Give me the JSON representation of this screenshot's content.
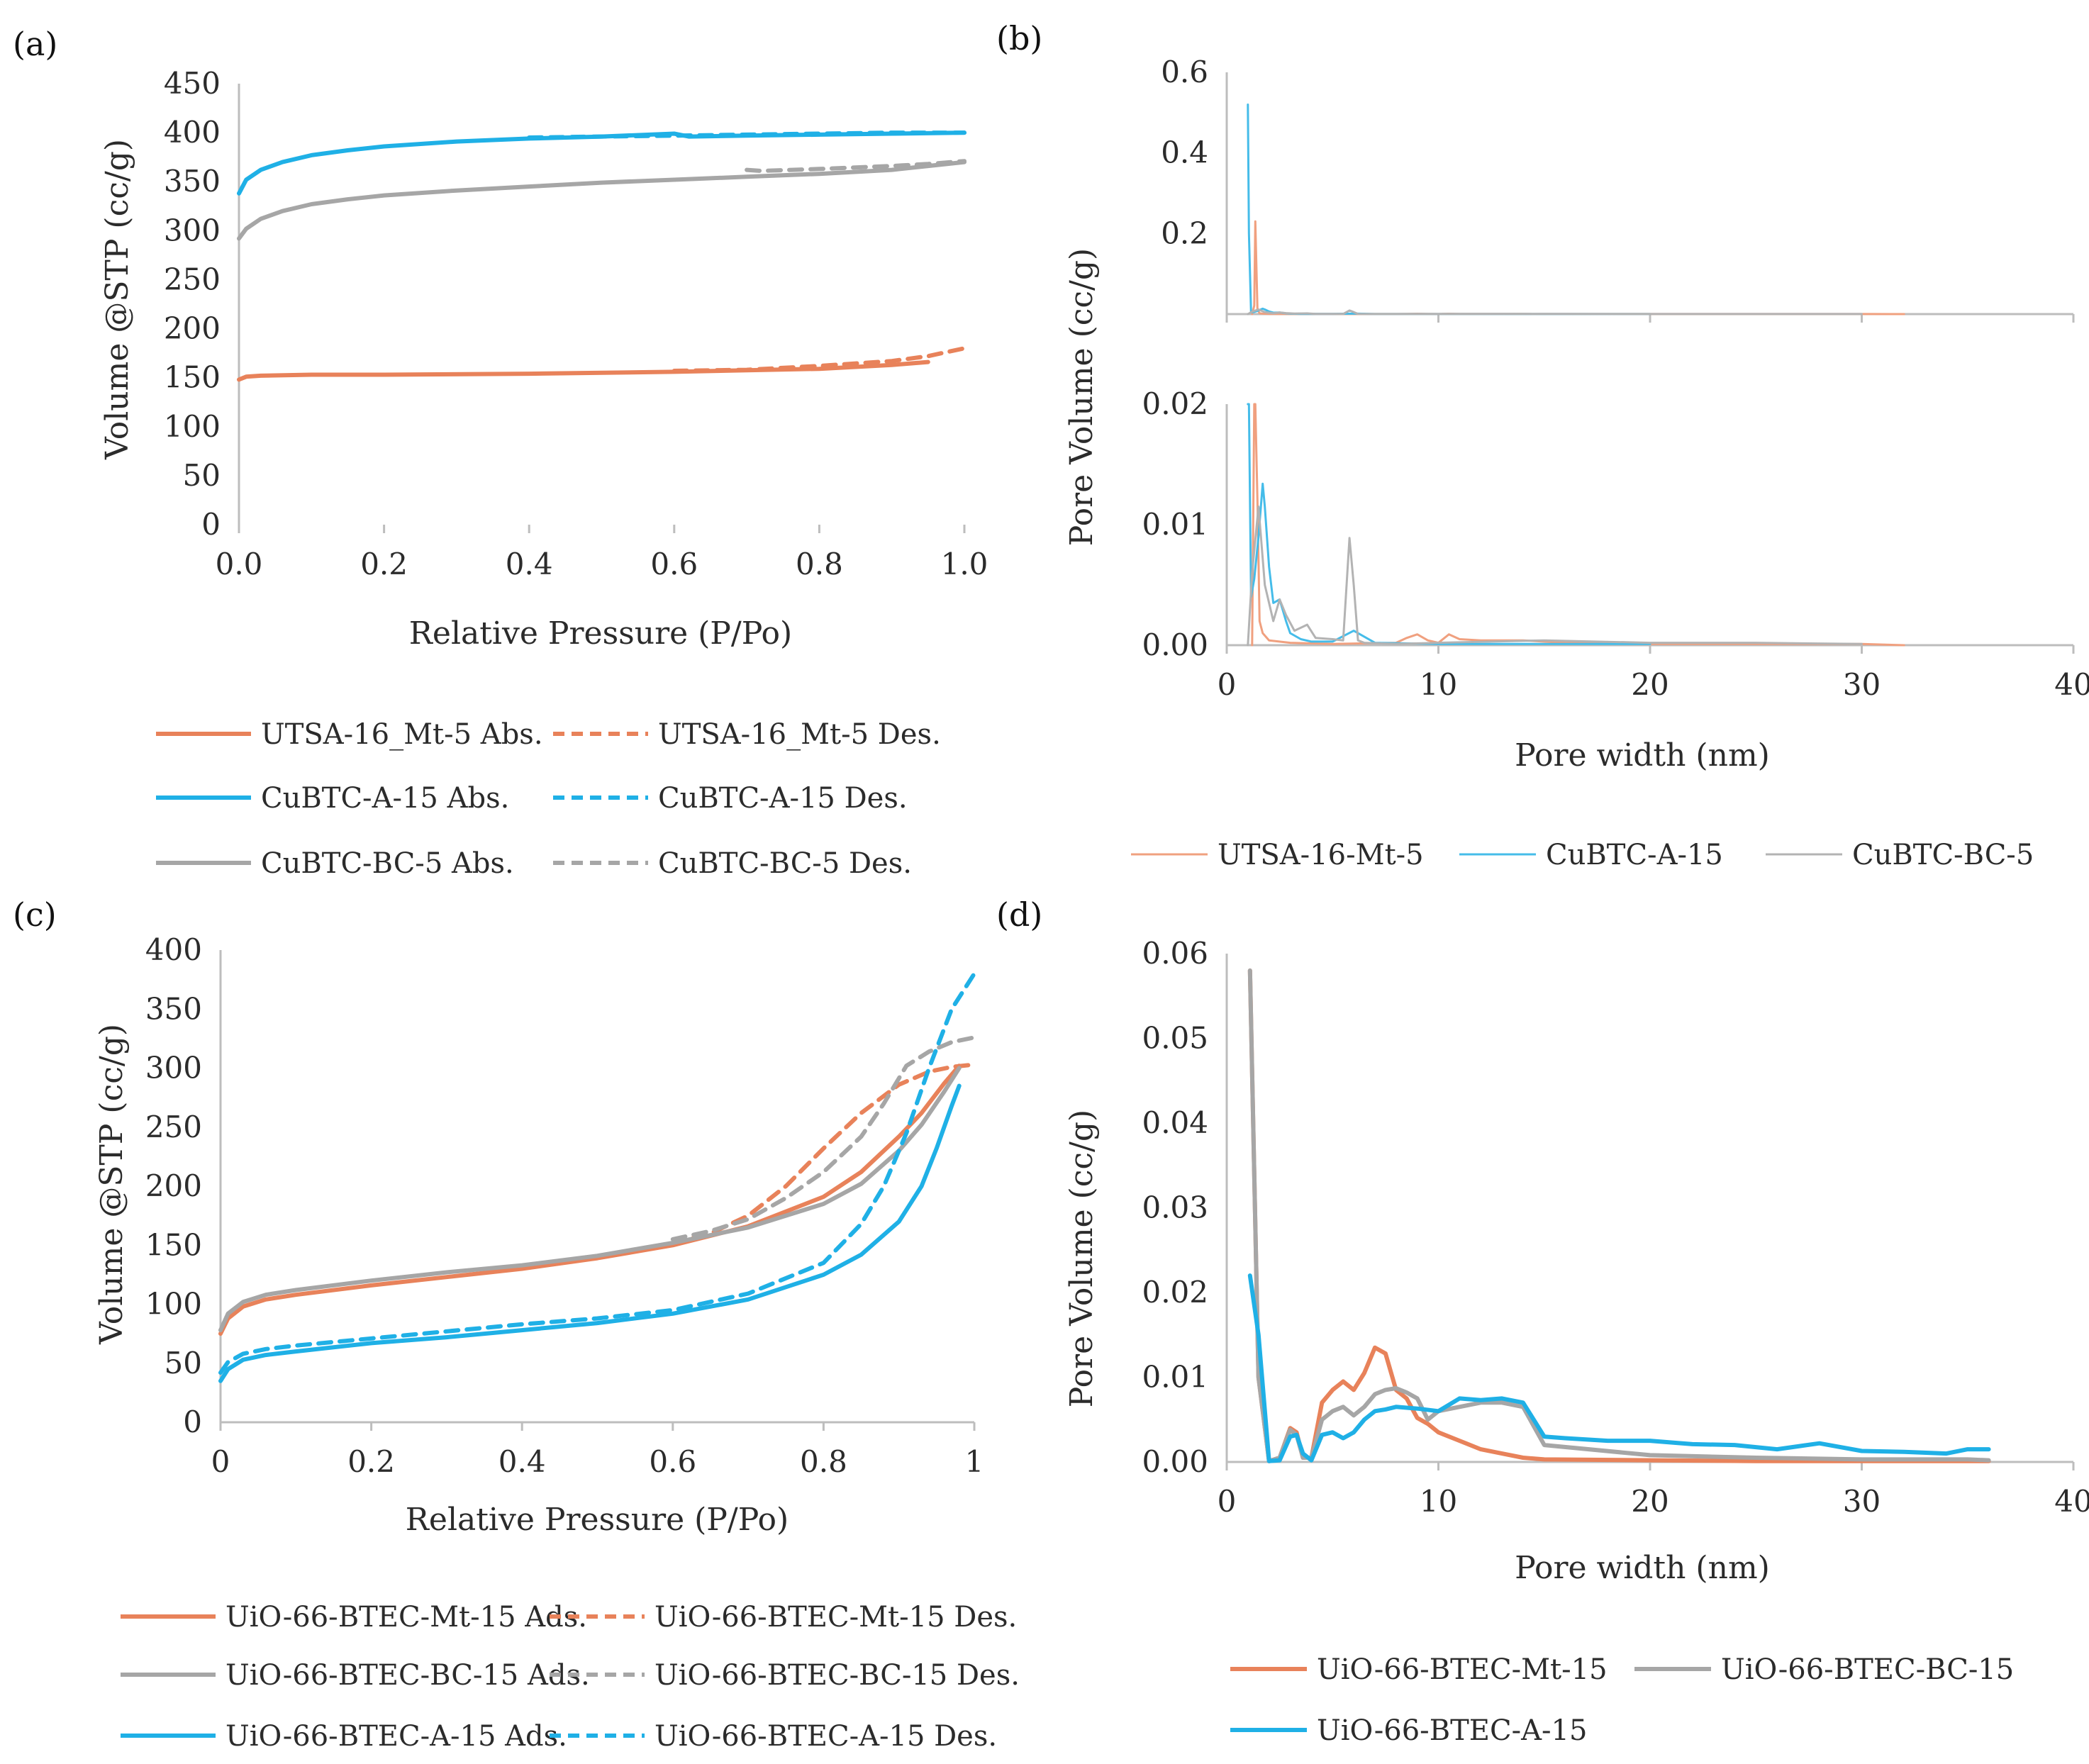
{
  "chart_data": [
    {
      "panel_label": "(a)",
      "type": "line",
      "xlabel": "Relative Pressure (P/Po)",
      "ylabel": "Volume @STP (cc/g)",
      "xlim": [
        0,
        1
      ],
      "ylim": [
        0,
        450
      ],
      "xticks": [
        0,
        0.2,
        0.4,
        0.6,
        0.8,
        1.0
      ],
      "xtick_labels": [
        "0.0",
        "0.2",
        "0.4",
        "0.6",
        "0.8",
        "1.0"
      ],
      "yticks": [
        0,
        50,
        100,
        150,
        200,
        250,
        300,
        350,
        400,
        450
      ],
      "ytick_labels": [
        "0",
        "50",
        "100",
        "150",
        "200",
        "250",
        "300",
        "350",
        "400",
        "450"
      ],
      "legend_position": "bottom",
      "series": [
        {
          "name": "UTSA-16_Mt-5 Abs.",
          "color": "#e8825a",
          "dash": "solid",
          "x": [
            0.0,
            0.01,
            0.03,
            0.1,
            0.2,
            0.4,
            0.6,
            0.8,
            0.9,
            0.95
          ],
          "y": [
            148,
            151,
            152,
            153,
            153,
            154,
            156,
            159,
            163,
            166
          ]
        },
        {
          "name": "UTSA-16_Mt-5 Des.",
          "color": "#e8825a",
          "dash": "dashed",
          "x": [
            0.6,
            0.7,
            0.8,
            0.9,
            0.95,
            1.0
          ],
          "y": [
            157,
            158,
            162,
            167,
            172,
            180
          ]
        },
        {
          "name": "CuBTC-A-15 Abs.",
          "color": "#1fb0e6",
          "dash": "solid",
          "x": [
            0.0,
            0.01,
            0.03,
            0.06,
            0.1,
            0.15,
            0.2,
            0.3,
            0.4,
            0.5,
            0.6,
            0.62,
            0.7,
            0.8,
            0.9,
            1.0
          ],
          "y": [
            338,
            352,
            362,
            370,
            377,
            382,
            386,
            391,
            394,
            396,
            399,
            396,
            397,
            398,
            399,
            400
          ]
        },
        {
          "name": "CuBTC-A-15 Des.",
          "color": "#1fb0e6",
          "dash": "dashed",
          "x": [
            0.4,
            0.5,
            0.6,
            0.7,
            0.8,
            0.9,
            1.0
          ],
          "y": [
            395,
            396,
            397,
            398,
            399,
            400,
            400
          ]
        },
        {
          "name": "CuBTC-BC-5 Abs.",
          "color": "#a6a6a6",
          "dash": "solid",
          "x": [
            0.0,
            0.01,
            0.03,
            0.06,
            0.1,
            0.15,
            0.2,
            0.3,
            0.4,
            0.5,
            0.6,
            0.7,
            0.8,
            0.9,
            0.95,
            1.0
          ],
          "y": [
            292,
            302,
            312,
            320,
            327,
            332,
            336,
            341,
            345,
            349,
            352,
            355,
            358,
            362,
            366,
            370
          ]
        },
        {
          "name": "CuBTC-BC-5 Des.",
          "color": "#a6a6a6",
          "dash": "dashed",
          "x": [
            0.7,
            0.72,
            0.8,
            0.9,
            0.95,
            1.0
          ],
          "y": [
            362,
            361,
            363,
            366,
            368,
            371
          ]
        }
      ]
    },
    {
      "panel_label": "(b)",
      "type": "line",
      "xlabel": "Pore width (nm)",
      "ylabel": "Pore Volume (cc/g)",
      "xlim": [
        0,
        40
      ],
      "upper_ylim": [
        0,
        0.6
      ],
      "upper_yticks": [
        0.2,
        0.4,
        0.6
      ],
      "upper_ytick_labels": [
        "0.2",
        "0.4",
        "0.6"
      ],
      "lower_ylim": [
        0,
        0.02
      ],
      "lower_yticks": [
        0,
        0.01,
        0.02
      ],
      "lower_ytick_labels": [
        "0.00",
        "0.01",
        "0.02"
      ],
      "xticks": [
        0,
        10,
        20,
        30,
        40
      ],
      "xtick_labels": [
        "0",
        "10",
        "20",
        "30",
        "40"
      ],
      "legend_position": "bottom",
      "series": [
        {
          "name": "UTSA-16-Mt-5",
          "color": "#f0a07f",
          "width": 3,
          "x": [
            1.2,
            1.3,
            1.35,
            1.45,
            1.55,
            1.7,
            2.0,
            3.0,
            5.0,
            8.0,
            8.5,
            9.0,
            9.5,
            10.0,
            10.5,
            11.0,
            12.0,
            14.0,
            16.0,
            20.0,
            25.0,
            30.0,
            32.0
          ],
          "y": [
            0,
            0.021,
            0.23,
            0.012,
            0.002,
            0.001,
            0.0004,
            0.0002,
            0.0001,
            0.0002,
            0.0006,
            0.0009,
            0.0004,
            0.0002,
            0.0009,
            0.0005,
            0.0004,
            0.0004,
            0.0002,
            0.0001,
            0.0001,
            0.0001,
            0
          ]
        },
        {
          "name": "CuBTC-A-15",
          "color": "#45bce9",
          "width": 3,
          "x": [
            1.0,
            1.05,
            1.15,
            1.3,
            1.5,
            1.7,
            1.8,
            2.0,
            2.2,
            2.5,
            2.8,
            3.0,
            3.5,
            4.0,
            5.0,
            6.0,
            7.0,
            10.0,
            15.0,
            20.0
          ],
          "y": [
            0.52,
            0.2,
            0.004,
            0.0055,
            0.009,
            0.0134,
            0.0115,
            0.0065,
            0.0035,
            0.0038,
            0.002,
            0.001,
            0.0005,
            0.0003,
            0.0003,
            0.0012,
            0.0002,
            0.0001,
            0.0001,
            0.0001
          ]
        },
        {
          "name": "CuBTC-BC-5",
          "color": "#b3b3b3",
          "width": 3,
          "x": [
            1.0,
            1.2,
            1.5,
            1.8,
            2.2,
            2.5,
            2.8,
            3.2,
            3.8,
            4.2,
            5.0,
            5.5,
            5.8,
            6.0,
            6.2,
            6.5,
            8.0,
            10.0,
            15.0,
            20.0,
            25.0,
            30.0
          ],
          "y": [
            0,
            0.006,
            0.0115,
            0.005,
            0.002,
            0.0038,
            0.0025,
            0.0012,
            0.0017,
            0.0006,
            0.0005,
            0.0004,
            0.0089,
            0.005,
            0.0004,
            0.0002,
            0.0001,
            0.0002,
            0.0004,
            0.0002,
            0.0002,
            0.0001
          ]
        }
      ]
    },
    {
      "panel_label": "(c)",
      "type": "line",
      "xlabel": "Relative Pressure (P/Po)",
      "ylabel": "Volume @STP (cc/g)",
      "xlim": [
        0,
        1
      ],
      "ylim": [
        0,
        400
      ],
      "xticks": [
        0,
        0.2,
        0.4,
        0.6,
        0.8,
        1
      ],
      "xtick_labels": [
        "0",
        "0.2",
        "0.4",
        "0.6",
        "0.8",
        "1"
      ],
      "yticks": [
        0,
        50,
        100,
        150,
        200,
        250,
        300,
        350,
        400
      ],
      "ytick_labels": [
        "0",
        "50",
        "100",
        "150",
        "200",
        "250",
        "300",
        "350",
        "400"
      ],
      "legend_position": "bottom",
      "series": [
        {
          "name": "UiO-66-BTEC-Mt-15 Ads.",
          "color": "#e8825a",
          "dash": "solid",
          "x": [
            0.0,
            0.01,
            0.03,
            0.06,
            0.1,
            0.2,
            0.3,
            0.4,
            0.5,
            0.6,
            0.7,
            0.8,
            0.85,
            0.9,
            0.93,
            0.96,
            0.98
          ],
          "y": [
            75,
            88,
            98,
            104,
            108,
            116,
            123,
            130,
            139,
            150,
            166,
            191,
            212,
            242,
            262,
            287,
            302
          ]
        },
        {
          "name": "UiO-66-BTEC-Mt-15 Des.",
          "color": "#e8825a",
          "dash": "dashed",
          "x": [
            0.6,
            0.65,
            0.7,
            0.75,
            0.8,
            0.85,
            0.9,
            0.94,
            0.97,
            1.0
          ],
          "y": [
            152,
            160,
            175,
            200,
            232,
            262,
            286,
            297,
            301,
            303
          ]
        },
        {
          "name": "UiO-66-BTEC-BC-15 Ads.",
          "color": "#a6a6a6",
          "dash": "solid",
          "x": [
            0.0,
            0.01,
            0.03,
            0.06,
            0.1,
            0.2,
            0.3,
            0.4,
            0.5,
            0.6,
            0.7,
            0.8,
            0.85,
            0.9,
            0.93,
            0.96,
            0.98
          ],
          "y": [
            78,
            92,
            102,
            108,
            112,
            120,
            127,
            133,
            141,
            152,
            165,
            185,
            202,
            230,
            252,
            280,
            300
          ]
        },
        {
          "name": "UiO-66-BTEC-BC-15 Des.",
          "color": "#a6a6a6",
          "dash": "dashed",
          "x": [
            0.6,
            0.65,
            0.7,
            0.75,
            0.8,
            0.85,
            0.88,
            0.91,
            0.94,
            0.97,
            1.0
          ],
          "y": [
            155,
            162,
            172,
            190,
            212,
            242,
            270,
            302,
            314,
            322,
            326
          ]
        },
        {
          "name": "UiO-66-BTEC-A-15 Ads.",
          "color": "#1fb0e6",
          "dash": "solid",
          "x": [
            0.0,
            0.01,
            0.03,
            0.06,
            0.1,
            0.2,
            0.3,
            0.4,
            0.5,
            0.6,
            0.7,
            0.8,
            0.85,
            0.9,
            0.93,
            0.95,
            0.97,
            0.98
          ],
          "y": [
            35,
            45,
            53,
            57,
            60,
            67,
            72,
            78,
            84,
            92,
            104,
            125,
            142,
            170,
            200,
            232,
            268,
            285
          ]
        },
        {
          "name": "UiO-66-BTEC-A-15 Des.",
          "color": "#1fb0e6",
          "dash": "dashed",
          "x": [
            0.0,
            0.01,
            0.03,
            0.06,
            0.1,
            0.2,
            0.3,
            0.4,
            0.5,
            0.6,
            0.7,
            0.8,
            0.85,
            0.88,
            0.91,
            0.94,
            0.97,
            1.0
          ],
          "y": [
            42,
            51,
            58,
            62,
            65,
            71,
            77,
            83,
            88,
            95,
            109,
            135,
            168,
            200,
            245,
            300,
            350,
            380
          ]
        }
      ]
    },
    {
      "panel_label": "(d)",
      "type": "line",
      "xlabel": "Pore width (nm)",
      "ylabel": "Pore Volume (cc/g)",
      "xlim": [
        0,
        40
      ],
      "ylim": [
        0,
        0.06
      ],
      "xticks": [
        0,
        10,
        20,
        30,
        40
      ],
      "xtick_labels": [
        "0",
        "10",
        "20",
        "30",
        "40"
      ],
      "yticks": [
        0,
        0.01,
        0.02,
        0.03,
        0.04,
        0.05,
        0.06
      ],
      "ytick_labels": [
        "0.00",
        "0.01",
        "0.02",
        "0.03",
        "0.04",
        "0.05",
        "0.06"
      ],
      "legend_position": "bottom",
      "series": [
        {
          "name": "UiO-66-BTEC-Mt-15",
          "color": "#e8825a",
          "width": 6,
          "x": [
            1.1,
            1.5,
            2.0,
            2.5,
            3.0,
            3.3,
            3.6,
            4.0,
            4.5,
            5.0,
            5.5,
            6.0,
            6.5,
            7.0,
            7.5,
            8.0,
            8.5,
            9.0,
            9.5,
            10.0,
            11.0,
            12.0,
            13.0,
            14.0,
            15.0,
            20.0,
            25.0,
            30.0,
            35.0,
            36.0
          ],
          "y": [
            0.058,
            0.01,
            0.0001,
            0.0005,
            0.004,
            0.0035,
            0.0005,
            0.0005,
            0.007,
            0.0085,
            0.0095,
            0.0085,
            0.0105,
            0.0135,
            0.0128,
            0.0085,
            0.0075,
            0.0052,
            0.0045,
            0.0035,
            0.0025,
            0.0015,
            0.001,
            0.0005,
            0.0003,
            0.0002,
            0.0001,
            0.0001,
            0.0001,
            0.0001
          ]
        },
        {
          "name": "UiO-66-BTEC-BC-15",
          "color": "#a6a6a6",
          "width": 6,
          "x": [
            1.1,
            1.5,
            2.0,
            2.5,
            3.0,
            3.3,
            3.6,
            4.0,
            4.5,
            5.0,
            5.5,
            6.0,
            6.5,
            7.0,
            7.5,
            8.0,
            8.5,
            9.0,
            9.5,
            10.0,
            11.0,
            12.0,
            13.0,
            14.0,
            15.0,
            20.0,
            25.0,
            30.0,
            35.0,
            36.0
          ],
          "y": [
            0.058,
            0.01,
            0.0001,
            0.0005,
            0.0038,
            0.0032,
            0.0005,
            0.0005,
            0.005,
            0.006,
            0.0065,
            0.0055,
            0.0065,
            0.008,
            0.0085,
            0.0087,
            0.0082,
            0.0075,
            0.005,
            0.006,
            0.0065,
            0.007,
            0.007,
            0.0065,
            0.002,
            0.0008,
            0.0005,
            0.0003,
            0.0003,
            0.0002
          ]
        },
        {
          "name": "UiO-66-BTEC-A-15",
          "color": "#1fb0e6",
          "width": 6,
          "x": [
            1.1,
            1.5,
            2.0,
            2.5,
            3.0,
            3.3,
            3.6,
            4.0,
            4.5,
            5.0,
            5.5,
            6.0,
            6.5,
            7.0,
            7.5,
            8.0,
            9.0,
            10.0,
            11.0,
            12.0,
            13.0,
            14.0,
            15.0,
            16.0,
            18.0,
            20.0,
            22.0,
            24.0,
            26.0,
            28.0,
            30.0,
            32.0,
            34.0,
            35.0,
            36.0
          ],
          "y": [
            0.022,
            0.015,
            0.0001,
            0.0002,
            0.003,
            0.0032,
            0.001,
            0.0002,
            0.0032,
            0.0035,
            0.0028,
            0.0035,
            0.005,
            0.006,
            0.0062,
            0.0065,
            0.0063,
            0.006,
            0.0075,
            0.0073,
            0.0075,
            0.007,
            0.003,
            0.0028,
            0.0025,
            0.0025,
            0.0021,
            0.002,
            0.0015,
            0.0022,
            0.0013,
            0.0012,
            0.001,
            0.0015,
            0.0015
          ]
        }
      ]
    }
  ]
}
